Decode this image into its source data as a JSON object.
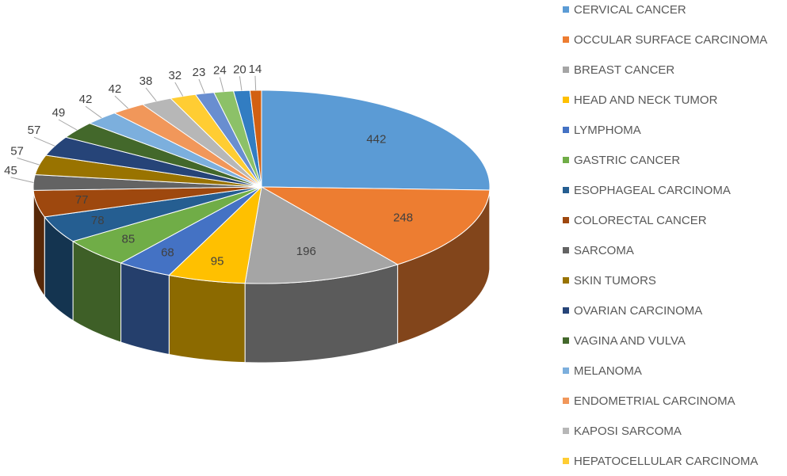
{
  "chart_data": {
    "type": "pie",
    "style": "3d",
    "title": "",
    "legend_position": "right",
    "series": [
      {
        "values": [
          442,
          248,
          196,
          95,
          68,
          85,
          78,
          77,
          45,
          57,
          57,
          49,
          42,
          42,
          38,
          32,
          23,
          24,
          20,
          14
        ],
        "labels": [
          "CERVICAL CANCER",
          "OCCULAR SURFACE CARCINOMA",
          "BREAST CANCER",
          "HEAD AND NECK TUMOR",
          "LYMPHOMA",
          "GASTRIC CANCER",
          "ESOPHAGEAL CARCINOMA",
          "COLORECTAL CANCER",
          "SARCOMA",
          "SKIN TUMORS",
          "OVARIAN CARCINOMA",
          "VAGINA AND VULVA",
          "MELANOMA",
          "ENDOMETRIAL CARCINOMA",
          "KAPOSI SARCOMA",
          "HEPATOCELLULAR CARCINOMA",
          "",
          "",
          "",
          ""
        ],
        "colors": [
          "#5b9bd5",
          "#ed7d31",
          "#a5a5a5",
          "#ffc000",
          "#4472c4",
          "#70ad47",
          "#255e91",
          "#9e480e",
          "#636363",
          "#997300",
          "#264478",
          "#43682b",
          "#7cafdd",
          "#f1975a",
          "#b7b7b7",
          "#ffcd33",
          "#698ed0",
          "#8cc168",
          "#327dc2",
          "#d26012"
        ]
      }
    ]
  }
}
